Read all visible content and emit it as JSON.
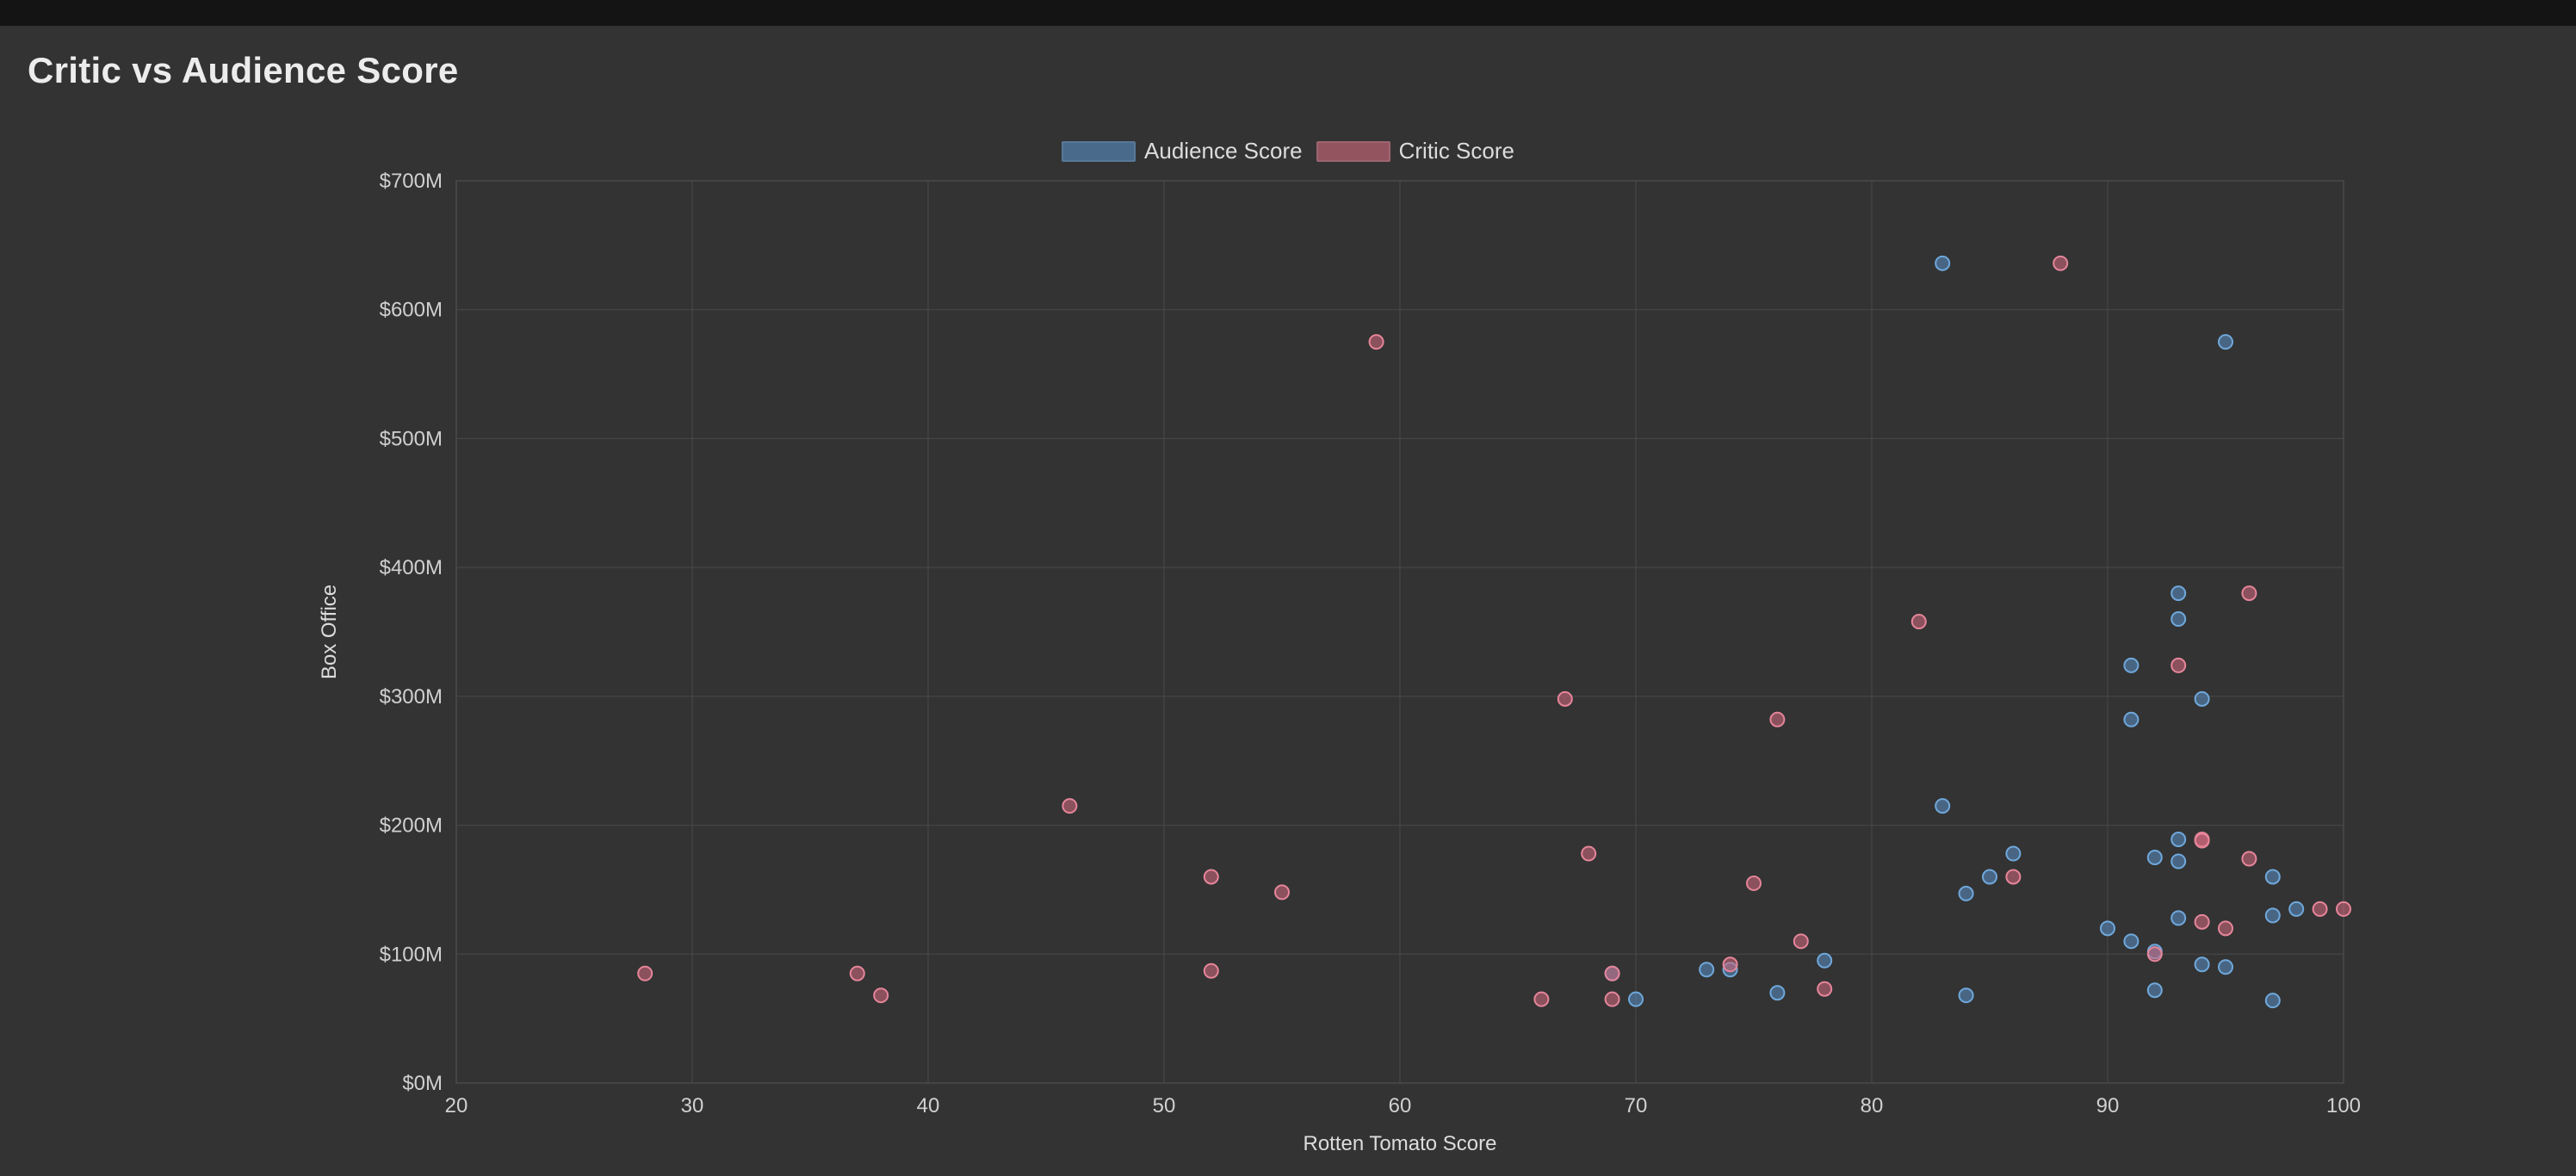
{
  "title": "Critic vs Audience Score",
  "legend": [
    {
      "label": "Audience Score",
      "fill": "#5a8fc7",
      "fillOpacity": 0.6,
      "stroke": "#6fa8dc"
    },
    {
      "label": "Critic Score",
      "fill": "#d46a7e",
      "fillOpacity": 0.6,
      "stroke": "#e6859a"
    }
  ],
  "chart": {
    "type": "scatter",
    "background": "#333333",
    "grid_color": "#4a4a4a",
    "x": {
      "label": "Rotten Tomato Score",
      "min": 20,
      "max": 100,
      "step": 10,
      "label_fontsize": 24
    },
    "y": {
      "label": "Box Office",
      "min": 0,
      "max": 700,
      "step": 100,
      "tick_prefix": "$",
      "tick_suffix": "M",
      "label_fontsize": 24
    },
    "point_radius": 8,
    "series": [
      {
        "name": "Audience Score",
        "fill": "#5a8fc7",
        "stroke": "#6fa8dc",
        "fillOpacity": 0.55,
        "points": [
          [
            83,
            636
          ],
          [
            95,
            575
          ],
          [
            93,
            380
          ],
          [
            93,
            360
          ],
          [
            91,
            324
          ],
          [
            94,
            298
          ],
          [
            91,
            282
          ],
          [
            83,
            215
          ],
          [
            93,
            189
          ],
          [
            86,
            178
          ],
          [
            93,
            172
          ],
          [
            97,
            160
          ],
          [
            85,
            160
          ],
          [
            92,
            175
          ],
          [
            84,
            147
          ],
          [
            98,
            135
          ],
          [
            93,
            128
          ],
          [
            97,
            130
          ],
          [
            90,
            120
          ],
          [
            91,
            110
          ],
          [
            92,
            102
          ],
          [
            94,
            92
          ],
          [
            78,
            95
          ],
          [
            95,
            90
          ],
          [
            73,
            88
          ],
          [
            74,
            88
          ],
          [
            69,
            85
          ],
          [
            92,
            72
          ],
          [
            76,
            70
          ],
          [
            84,
            68
          ],
          [
            70,
            65
          ],
          [
            97,
            64
          ]
        ]
      },
      {
        "name": "Critic Score",
        "fill": "#d46a7e",
        "stroke": "#e6859a",
        "fillOpacity": 0.55,
        "points": [
          [
            88,
            636
          ],
          [
            59,
            575
          ],
          [
            96,
            380
          ],
          [
            82,
            358
          ],
          [
            93,
            324
          ],
          [
            67,
            298
          ],
          [
            76,
            282
          ],
          [
            46,
            215
          ],
          [
            94,
            189
          ],
          [
            94,
            188
          ],
          [
            68,
            178
          ],
          [
            96,
            174
          ],
          [
            52,
            160
          ],
          [
            86,
            160
          ],
          [
            75,
            155
          ],
          [
            55,
            148
          ],
          [
            99,
            135
          ],
          [
            100,
            135
          ],
          [
            94,
            125
          ],
          [
            95,
            120
          ],
          [
            77,
            110
          ],
          [
            92,
            100
          ],
          [
            74,
            92
          ],
          [
            52,
            87
          ],
          [
            69,
            85
          ],
          [
            28,
            85
          ],
          [
            37,
            85
          ],
          [
            78,
            73
          ],
          [
            69,
            65
          ],
          [
            38,
            68
          ],
          [
            66,
            65
          ]
        ]
      }
    ]
  }
}
